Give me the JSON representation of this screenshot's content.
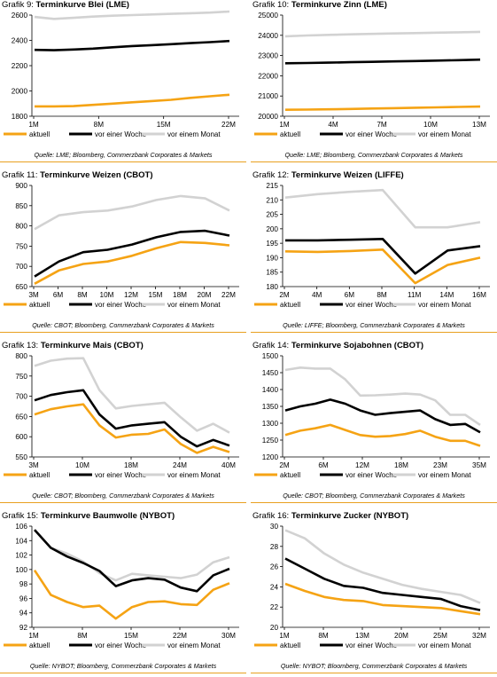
{
  "legend": [
    "aktuell",
    "vor einer Woche",
    "vor einem Monat"
  ],
  "colors": {
    "aktuell": "#f5a314",
    "woche": "#000000",
    "monat": "#d2d2d2",
    "rule": "#e8a020"
  },
  "chart_data": [
    {
      "type": "line",
      "fig": "Grafik 9:",
      "name": "Terminkurve Blei (LME)",
      "source": "Quelle: LME; Bloomberg, Commerzbank Corporates & Markets",
      "yticks": [
        1800,
        2000,
        2200,
        2400,
        2600
      ],
      "ylim": [
        1800,
        2600
      ],
      "xlabels": [
        "1M",
        "8M",
        "15M",
        "22M"
      ],
      "series": [
        {
          "name": "aktuell",
          "values": [
            1878,
            1878,
            1880,
            1890,
            1900,
            1910,
            1920,
            1930,
            1945,
            1958,
            1970
          ]
        },
        {
          "name": "vor einer Woche",
          "values": [
            2325,
            2322,
            2328,
            2335,
            2345,
            2355,
            2362,
            2370,
            2378,
            2386,
            2395
          ]
        },
        {
          "name": "vor einem Monat",
          "values": [
            2585,
            2570,
            2578,
            2588,
            2595,
            2600,
            2605,
            2610,
            2615,
            2620,
            2628
          ]
        }
      ]
    },
    {
      "type": "line",
      "fig": "Grafik 10:",
      "name": "Terminkurve Zinn (LME)",
      "source": "Quelle: LME; Bloomberg, Commerzbank Corporates & Markets",
      "yticks": [
        20000,
        21000,
        22000,
        23000,
        24000,
        25000
      ],
      "ylim": [
        20000,
        25000
      ],
      "xlabels": [
        "1M",
        "4M",
        "7M",
        "10M",
        "13M"
      ],
      "series": [
        {
          "name": "aktuell",
          "values": [
            20320,
            20330,
            20340,
            20360,
            20380,
            20400,
            20420,
            20440,
            20460,
            20480
          ]
        },
        {
          "name": "vor einer Woche",
          "values": [
            22620,
            22630,
            22650,
            22670,
            22690,
            22710,
            22730,
            22750,
            22770,
            22800
          ]
        },
        {
          "name": "vor einem Monat",
          "values": [
            23950,
            23990,
            24020,
            24050,
            24070,
            24090,
            24110,
            24130,
            24150,
            24170
          ]
        }
      ]
    },
    {
      "type": "line",
      "fig": "Grafik 11:",
      "name": "Terminkurve Weizen (CBOT)",
      "source": "Quelle: CBOT; Bloomberg, Commerzbank Corporates & Markets",
      "yticks": [
        650,
        700,
        750,
        800,
        850,
        900
      ],
      "ylim": [
        650,
        900
      ],
      "xlabels": [
        "3M",
        "6M",
        "8M",
        "10M",
        "12M",
        "15M",
        "18M",
        "20M",
        "22M"
      ],
      "series": [
        {
          "name": "aktuell",
          "values": [
            657,
            690,
            706,
            712,
            726,
            745,
            760,
            758,
            752
          ]
        },
        {
          "name": "vor einer Woche",
          "values": [
            675,
            712,
            735,
            741,
            754,
            772,
            785,
            788,
            776
          ]
        },
        {
          "name": "vor einem Monat",
          "values": [
            792,
            826,
            834,
            838,
            848,
            864,
            874,
            868,
            838
          ]
        }
      ]
    },
    {
      "type": "line",
      "fig": "Grafik 12:",
      "name": "Terminkurve Weizen (LIFFE)",
      "source": "Quelle: LIFFE; Bloomberg, Commerzbank Corporates & Markets",
      "yticks": [
        180,
        185,
        190,
        195,
        200,
        205,
        210,
        215
      ],
      "ylim": [
        180,
        215
      ],
      "xlabels": [
        "2M",
        "4M",
        "6M",
        "8M",
        "11M",
        "14M",
        "16M"
      ],
      "series": [
        {
          "name": "aktuell",
          "values": [
            192.2,
            192.0,
            192.3,
            192.8,
            181.2,
            187.5,
            190.0
          ]
        },
        {
          "name": "vor einer Woche",
          "values": [
            196.0,
            196.0,
            196.2,
            196.5,
            184.5,
            192.5,
            194.0
          ]
        },
        {
          "name": "vor einem Monat",
          "values": [
            210.8,
            212.0,
            212.8,
            213.4,
            200.5,
            200.5,
            202.3
          ]
        }
      ]
    },
    {
      "type": "line",
      "fig": "Grafik 13:",
      "name": "Terminkurve Mais (CBOT)",
      "source": "Quelle: CBOT; Bloomberg, Commerzbank Corporates & Markets",
      "yticks": [
        550,
        600,
        650,
        700,
        750,
        800
      ],
      "ylim": [
        550,
        800
      ],
      "xlabels": [
        "3M",
        "10M",
        "18M",
        "24M",
        "40M"
      ],
      "series": [
        {
          "name": "aktuell",
          "values": [
            655,
            668,
            675,
            680,
            628,
            598,
            605,
            607,
            618,
            582,
            560,
            575,
            562
          ]
        },
        {
          "name": "vor einer Woche",
          "values": [
            690,
            703,
            710,
            715,
            655,
            620,
            628,
            632,
            636,
            600,
            576,
            592,
            578
          ]
        },
        {
          "name": "vor einem Monat",
          "values": [
            775,
            788,
            793,
            794,
            715,
            670,
            676,
            680,
            684,
            648,
            615,
            632,
            610
          ]
        }
      ]
    },
    {
      "type": "line",
      "fig": "Grafik 14:",
      "name": "Terminkurve Sojabohnen (CBOT)",
      "source": "Quelle: CBOT; Bloomberg, Commerzbank Corporates & Markets",
      "yticks": [
        1200,
        1250,
        1300,
        1350,
        1400,
        1450,
        1500
      ],
      "ylim": [
        1200,
        1500
      ],
      "xlabels": [
        "2M",
        "6M",
        "12M",
        "18M",
        "23M",
        "35M"
      ],
      "series": [
        {
          "name": "aktuell",
          "values": [
            1265,
            1278,
            1285,
            1295,
            1280,
            1265,
            1260,
            1262,
            1268,
            1278,
            1260,
            1248,
            1248,
            1233
          ]
        },
        {
          "name": "vor einer Woche",
          "values": [
            1338,
            1350,
            1358,
            1370,
            1358,
            1338,
            1325,
            1330,
            1334,
            1338,
            1312,
            1295,
            1298,
            1273
          ]
        },
        {
          "name": "vor einem Monat",
          "values": [
            1458,
            1465,
            1462,
            1462,
            1430,
            1382,
            1383,
            1385,
            1388,
            1385,
            1368,
            1325,
            1325,
            1295
          ]
        }
      ]
    },
    {
      "type": "line",
      "fig": "Grafik 15:",
      "name": "Terminkurve Baumwolle (NYBOT)",
      "source": "Quelle: NYBOT; Bloomberg, Commerzbank Corporates & Markets",
      "yticks": [
        92,
        94,
        96,
        98,
        100,
        102,
        104,
        106
      ],
      "ylim": [
        92,
        106
      ],
      "xlabels": [
        "1M",
        "8M",
        "15M",
        "22M",
        "30M"
      ],
      "series": [
        {
          "name": "aktuell",
          "values": [
            99.9,
            96.5,
            95.5,
            94.8,
            95.0,
            93.2,
            94.8,
            95.5,
            95.6,
            95.2,
            95.1,
            97.2,
            98.1
          ]
        },
        {
          "name": "vor einer Woche",
          "values": [
            105.5,
            103.0,
            101.8,
            100.9,
            99.8,
            97.7,
            98.5,
            98.8,
            98.6,
            97.5,
            97.0,
            99.2,
            100.1
          ]
        },
        {
          "name": "vor einem Monat",
          "values": [
            105.5,
            103.0,
            102.2,
            101.1,
            99.5,
            98.5,
            99.4,
            99.2,
            99.0,
            98.8,
            99.3,
            101.0,
            101.7
          ]
        }
      ]
    },
    {
      "type": "line",
      "fig": "Grafik 16:",
      "name": "Terminkurve Zucker (NYBOT)",
      "source": "Quelle: NYBOT; Bloomberg, Commerzbank Corporates & Markets",
      "yticks": [
        20,
        22,
        24,
        26,
        28,
        30
      ],
      "ylim": [
        20,
        30
      ],
      "xlabels": [
        "1M",
        "8M",
        "13M",
        "20M",
        "25M",
        "32M"
      ],
      "series": [
        {
          "name": "aktuell",
          "values": [
            24.3,
            23.6,
            23.0,
            22.7,
            22.6,
            22.2,
            22.1,
            22.0,
            21.9,
            21.6,
            21.3
          ]
        },
        {
          "name": "vor einer Woche",
          "values": [
            26.8,
            25.8,
            24.8,
            24.1,
            23.9,
            23.4,
            23.2,
            23.0,
            22.8,
            22.1,
            21.7
          ]
        },
        {
          "name": "vor einem Monat",
          "values": [
            29.6,
            28.8,
            27.3,
            26.2,
            25.4,
            24.8,
            24.2,
            23.8,
            23.5,
            23.2,
            22.4
          ]
        }
      ]
    }
  ]
}
